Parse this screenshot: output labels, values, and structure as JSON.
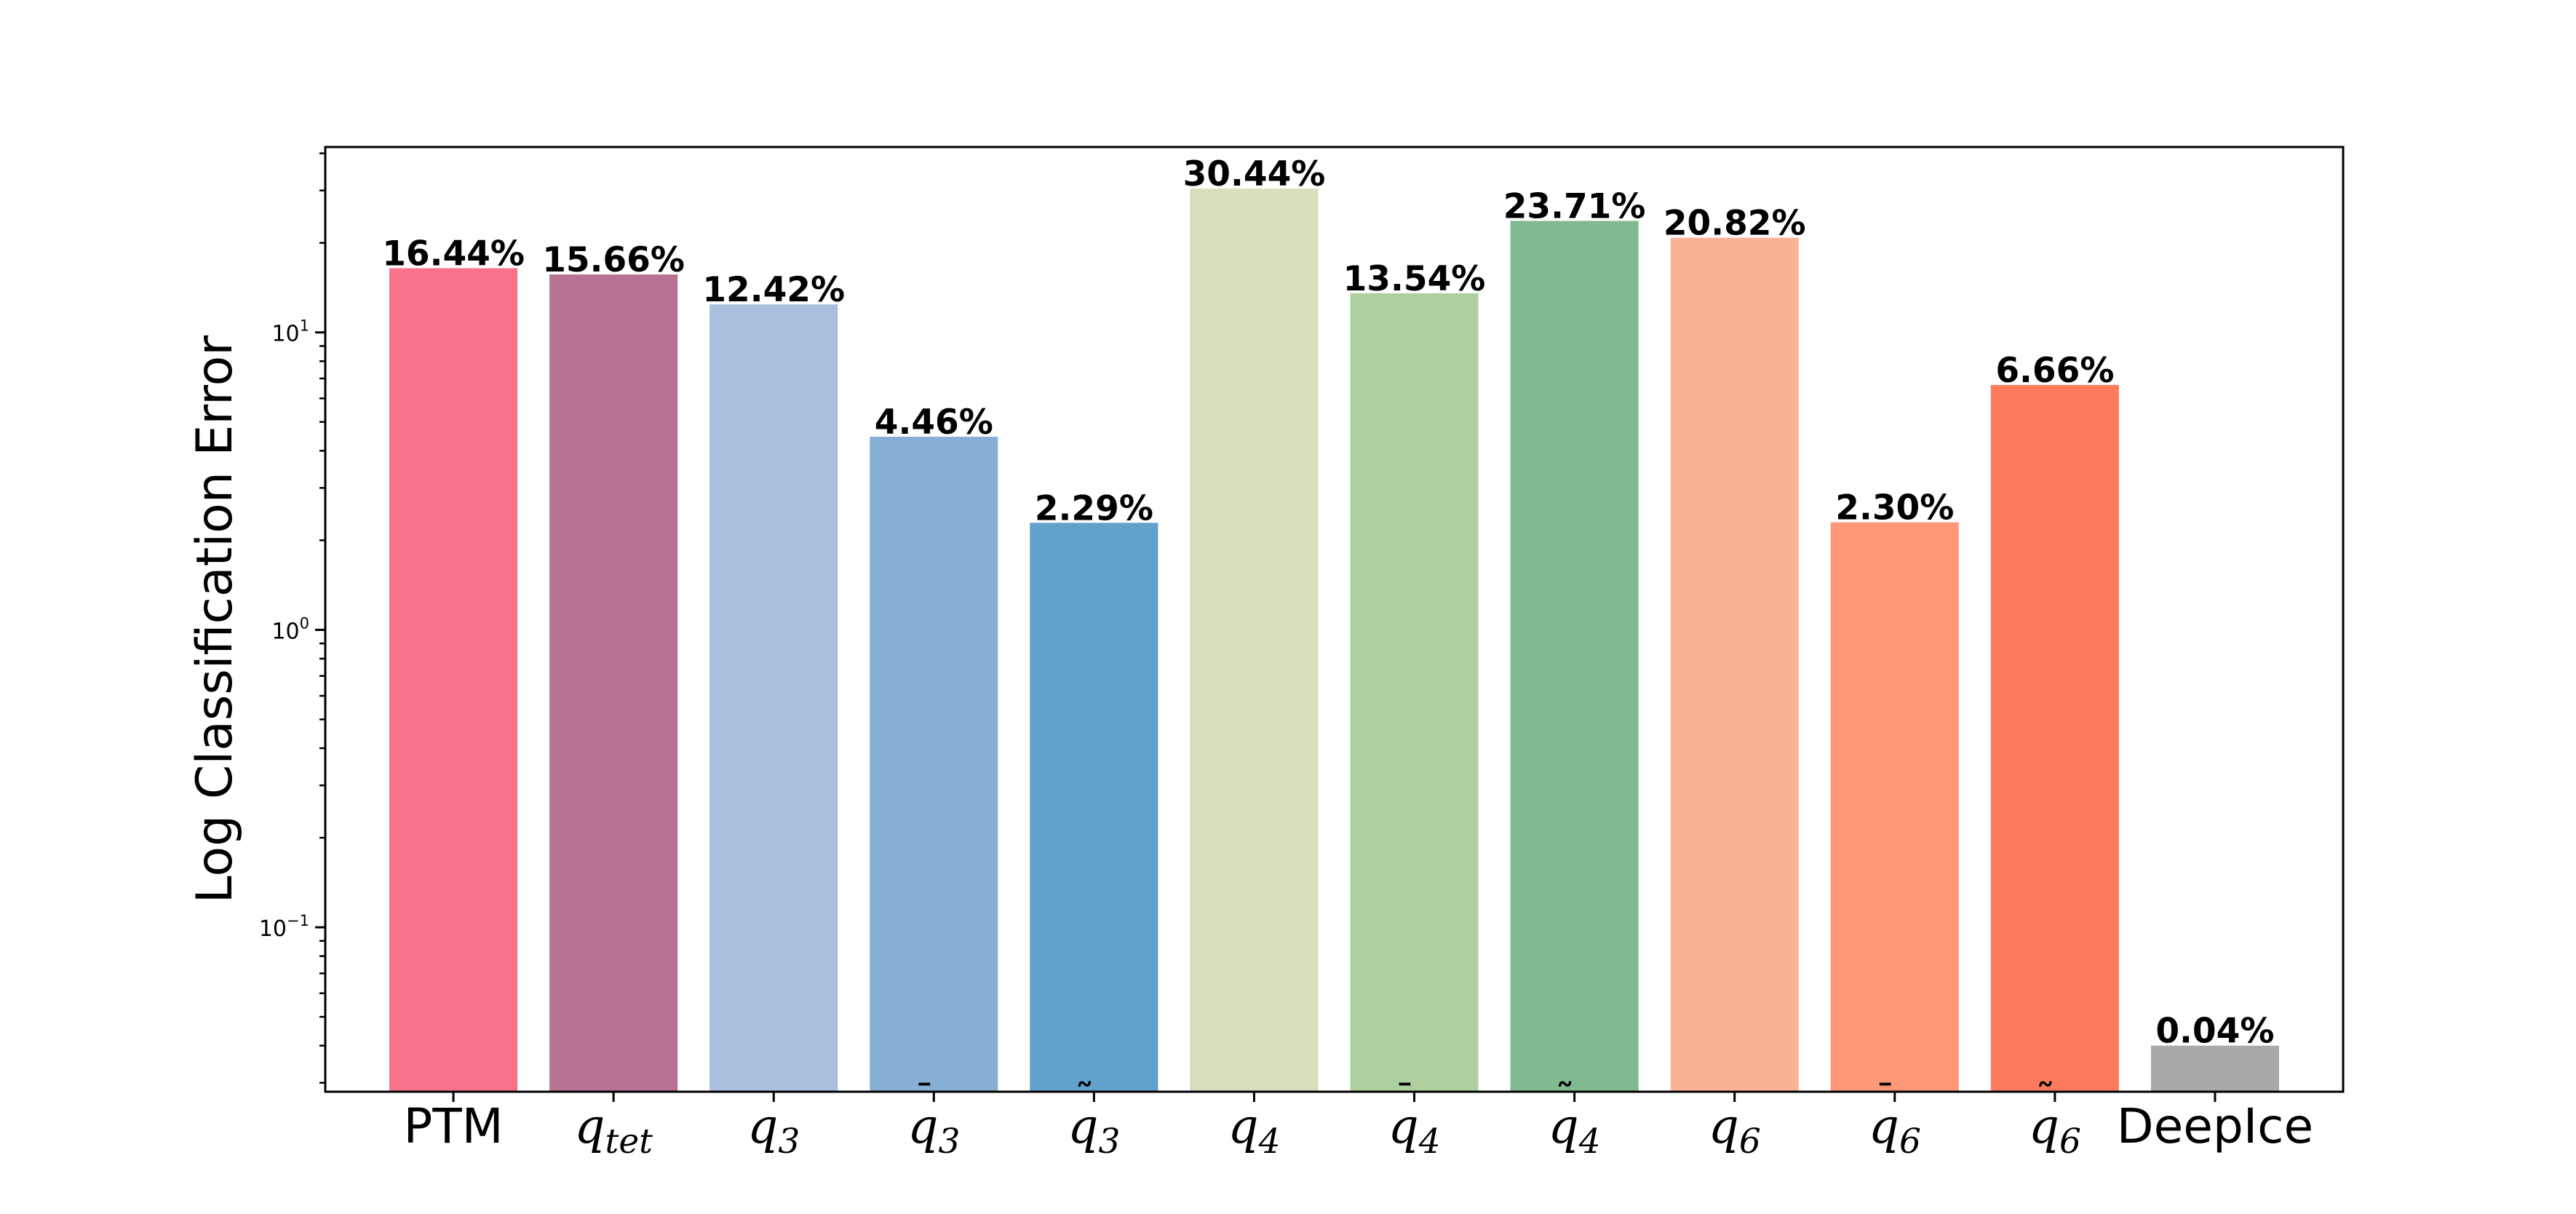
{
  "chart_data": {
    "type": "bar",
    "ylabel": "Log Classification Error",
    "yscale": "log",
    "ylim": [
      0.028,
      42
    ],
    "yticks": [
      {
        "value": 10,
        "base": "10",
        "exp": "1"
      },
      {
        "value": 1,
        "base": "10",
        "exp": "0"
      },
      {
        "value": 0.1,
        "base": "10",
        "exp": "−1"
      }
    ],
    "grid": false,
    "categories": [
      {
        "id": "PTM",
        "text": "PTM",
        "math": false
      },
      {
        "id": "q_tet",
        "base": "q",
        "sub": "tet",
        "accent": "",
        "math": true
      },
      {
        "id": "q_3",
        "base": "q",
        "sub": "3",
        "accent": "",
        "math": true
      },
      {
        "id": "qbar_3",
        "base": "q",
        "sub": "3",
        "accent": "¯",
        "math": true
      },
      {
        "id": "qtilde_3",
        "base": "q",
        "sub": "3",
        "accent": "˜",
        "math": true
      },
      {
        "id": "q_4",
        "base": "q",
        "sub": "4",
        "accent": "",
        "math": true
      },
      {
        "id": "qbar_4",
        "base": "q",
        "sub": "4",
        "accent": "¯",
        "math": true
      },
      {
        "id": "qtilde_4",
        "base": "q",
        "sub": "4",
        "accent": "˜",
        "math": true
      },
      {
        "id": "q_6",
        "base": "q",
        "sub": "6",
        "accent": "",
        "math": true
      },
      {
        "id": "qbar_6",
        "base": "q",
        "sub": "6",
        "accent": "¯",
        "math": true
      },
      {
        "id": "qtilde_6",
        "base": "q",
        "sub": "6",
        "accent": "˜",
        "math": true
      },
      {
        "id": "DeepIce",
        "text": "DeepIce",
        "math": false
      }
    ],
    "values": [
      16.44,
      15.66,
      12.42,
      4.46,
      2.29,
      30.44,
      13.54,
      23.71,
      20.82,
      2.3,
      6.66,
      0.04
    ],
    "value_labels": [
      "16.44%",
      "15.66%",
      "12.42%",
      "4.46%",
      "2.29%",
      "30.44%",
      "13.54%",
      "23.71%",
      "20.82%",
      "2.30%",
      "6.66%",
      "0.04%"
    ],
    "colors": [
      "#F7728A",
      "#B87292",
      "#AABFDD",
      "#86AFD3",
      "#61A1CB",
      "#D9DFBE",
      "#AED0A0",
      "#81BA91",
      "#FBB398",
      "#FC9878",
      "#FD7B5C",
      "#A9A9A9"
    ]
  }
}
